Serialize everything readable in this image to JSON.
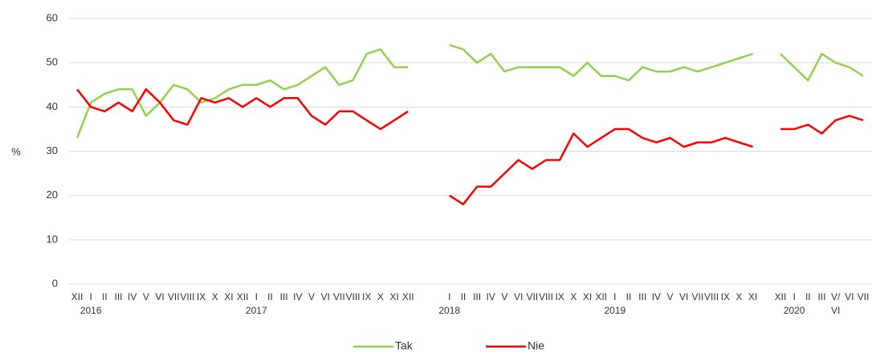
{
  "chart_data": {
    "type": "line",
    "y_label": "%",
    "categories": [
      "XII",
      "I\n2016",
      "II",
      "III",
      "IV",
      "V",
      "VI",
      "VII",
      "VIII",
      "IX",
      "X",
      "XI",
      "XII",
      "I\n2017",
      "II",
      "III",
      "IV",
      "V",
      "VI",
      "VII",
      "VIII",
      "IX",
      "X",
      "XI",
      "XII",
      null,
      null,
      "I\n2018",
      "II",
      "III",
      "IV",
      "V",
      "VI",
      "VII",
      "VIII",
      "IX",
      "X",
      "XI",
      "XII",
      "I\n2019",
      "II",
      "III",
      "IV",
      "V",
      "VI",
      "VII",
      "VIII",
      "IX",
      "X",
      "XI",
      null,
      "XII",
      "I\n2020",
      "II",
      "III",
      "V/\nVI",
      "VI",
      "VII"
    ],
    "series": [
      {
        "name": "Tak",
        "color": "#92d050",
        "values": [
          33,
          41,
          43,
          44,
          44,
          38,
          41,
          45,
          44,
          41,
          42,
          44,
          45,
          45,
          46,
          44,
          45,
          47,
          49,
          45,
          46,
          52,
          53,
          49,
          49,
          null,
          null,
          54,
          53,
          50,
          52,
          48,
          49,
          49,
          49,
          49,
          47,
          50,
          47,
          47,
          46,
          49,
          48,
          48,
          49,
          48,
          49,
          50,
          51,
          52,
          null,
          52,
          49,
          46,
          52,
          50,
          49,
          47
        ]
      },
      {
        "name": "Nie",
        "color": "#ff0000",
        "values": [
          44,
          40,
          39,
          41,
          39,
          44,
          41,
          37,
          36,
          42,
          41,
          42,
          40,
          42,
          40,
          42,
          42,
          38,
          36,
          39,
          39,
          37,
          35,
          37,
          39,
          null,
          null,
          20,
          18,
          22,
          22,
          25,
          28,
          26,
          28,
          28,
          34,
          31,
          33,
          35,
          35,
          33,
          32,
          33,
          31,
          32,
          32,
          33,
          32,
          31,
          null,
          35,
          35,
          36,
          34,
          37,
          38,
          37
        ]
      }
    ],
    "ylim": [
      0,
      60
    ],
    "yticks": [
      0,
      10,
      20,
      30,
      40,
      50,
      60
    ],
    "grid": true,
    "legend": "bottom"
  }
}
